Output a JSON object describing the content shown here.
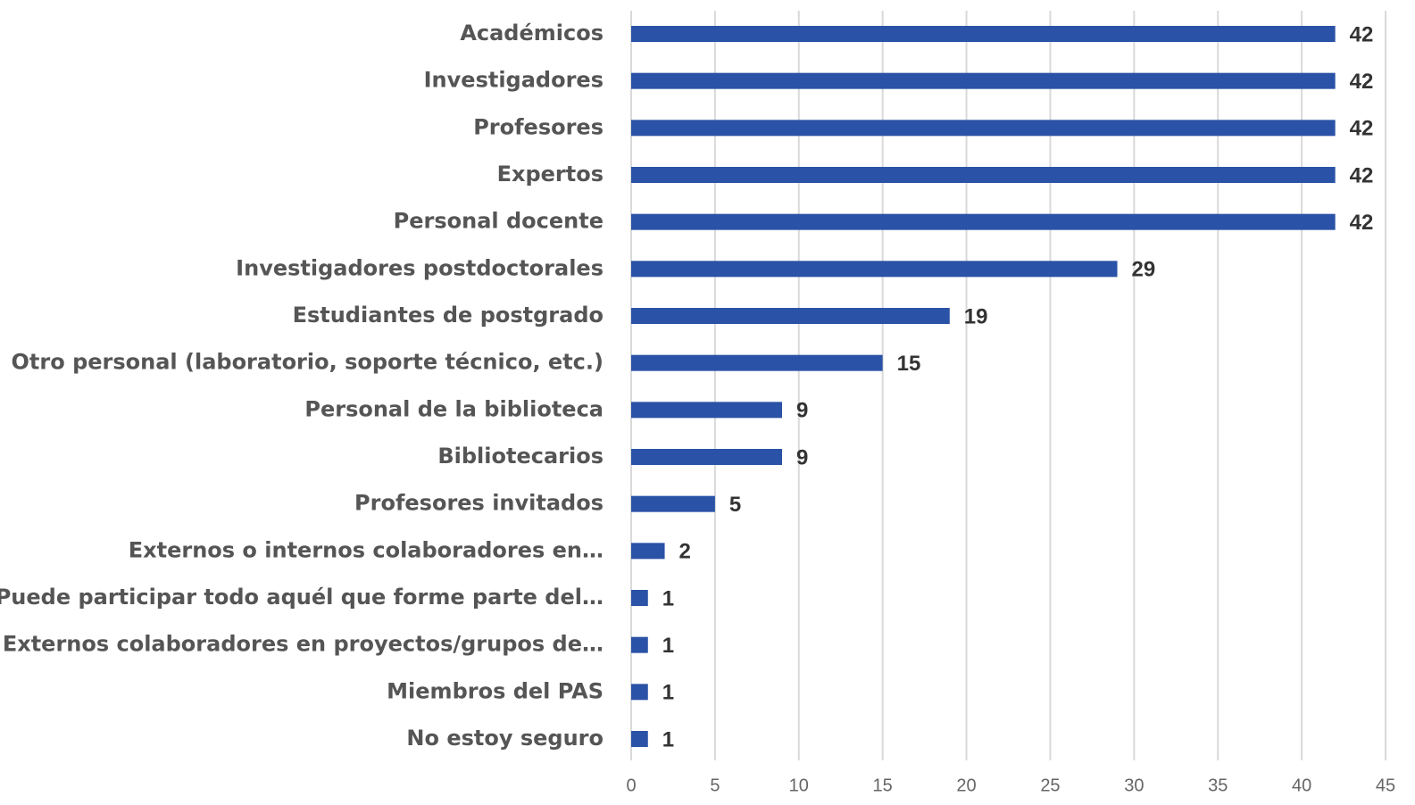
{
  "chart_data": {
    "type": "bar",
    "orientation": "horizontal",
    "categories": [
      "Académicos",
      "Investigadores",
      "Profesores",
      "Expertos",
      "Personal docente",
      "Investigadores postdoctorales",
      "Estudiantes de postgrado",
      "Otro personal (laboratorio, soporte técnico, etc.)",
      "Personal de la biblioteca",
      "Bibliotecarios",
      "Profesores invitados",
      "Externos o internos colaboradores en…",
      "Puede participar todo aquél que forme parte del…",
      "Externos colaboradores en proyectos/grupos de…",
      "Miembros del PAS",
      "No estoy seguro"
    ],
    "values": [
      42,
      42,
      42,
      42,
      42,
      29,
      19,
      15,
      9,
      9,
      5,
      2,
      1,
      1,
      1,
      1
    ],
    "color": "#2a52a6",
    "xlim": [
      0,
      45
    ],
    "xticks": [
      0,
      5,
      10,
      15,
      20,
      25,
      30,
      35,
      40,
      45
    ],
    "grid": true
  }
}
